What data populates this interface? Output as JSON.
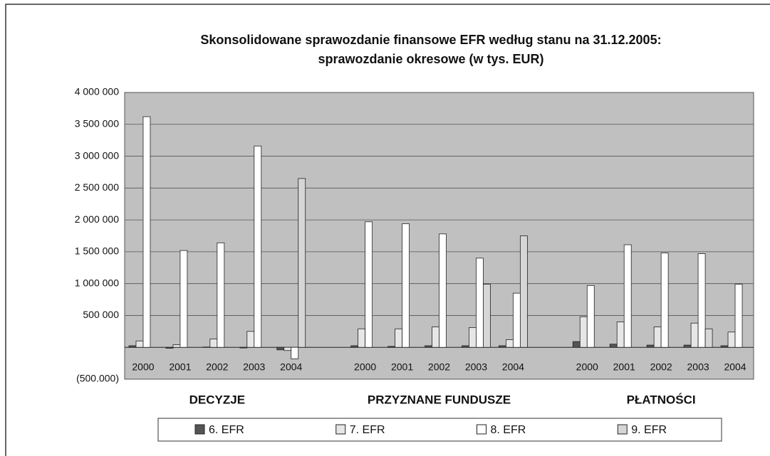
{
  "chart_data": {
    "type": "bar",
    "title": [
      "Skonsolidowane sprawozdanie finansowe EFR według stanu na 31.12.2005:",
      "sprawozdanie okresowe (w tys. EUR)"
    ],
    "categories": [
      "2000",
      "2001",
      "2002",
      "2003",
      "2004",
      null,
      "2000",
      "2001",
      "2002",
      "2003",
      "2004",
      null,
      "2000",
      "2001",
      "2002",
      "2003",
      "2004"
    ],
    "groups": [
      "DECYZJE",
      "PRZYZNANE FUNDUSZE",
      "PŁATNOŚCI"
    ],
    "series": [
      {
        "name": "6. EFR",
        "color": "#555555",
        "values": [
          25000,
          -15000,
          5000,
          -10000,
          -40000,
          null,
          25000,
          15000,
          25000,
          25000,
          25000,
          null,
          90000,
          50000,
          35000,
          35000,
          25000
        ]
      },
      {
        "name": "7. EFR",
        "color": "#e6e6e6",
        "values": [
          100000,
          40000,
          130000,
          250000,
          -50000,
          null,
          290000,
          290000,
          320000,
          310000,
          120000,
          null,
          480000,
          400000,
          320000,
          380000,
          240000
        ]
      },
      {
        "name": "8. EFR",
        "color": "#ffffff",
        "values": [
          3620000,
          1520000,
          1640000,
          3160000,
          -180000,
          null,
          1970000,
          1940000,
          1780000,
          1400000,
          850000,
          null,
          970000,
          1610000,
          1480000,
          1470000,
          990000
        ]
      },
      {
        "name": "9. EFR",
        "color": "#d6d6d6",
        "values": [
          null,
          null,
          null,
          null,
          2650000,
          null,
          null,
          null,
          null,
          990000,
          1750000,
          null,
          null,
          null,
          null,
          290000,
          null
        ]
      }
    ],
    "ylim": [
      -500000,
      4000000
    ],
    "yticks": [
      {
        "value": -500000,
        "label": "(500.000)"
      },
      {
        "value": 500000,
        "label": "500 000"
      },
      {
        "value": 1000000,
        "label": "1 000 000"
      },
      {
        "value": 1500000,
        "label": "1 500 000"
      },
      {
        "value": 2000000,
        "label": "2 000 000"
      },
      {
        "value": 2500000,
        "label": "2 500 000"
      },
      {
        "value": 3000000,
        "label": "3 000 000"
      },
      {
        "value": 3500000,
        "label": "3 500 000"
      },
      {
        "value": 4000000,
        "label": "4 000 000"
      }
    ],
    "grid": true,
    "legend": "bottom"
  }
}
